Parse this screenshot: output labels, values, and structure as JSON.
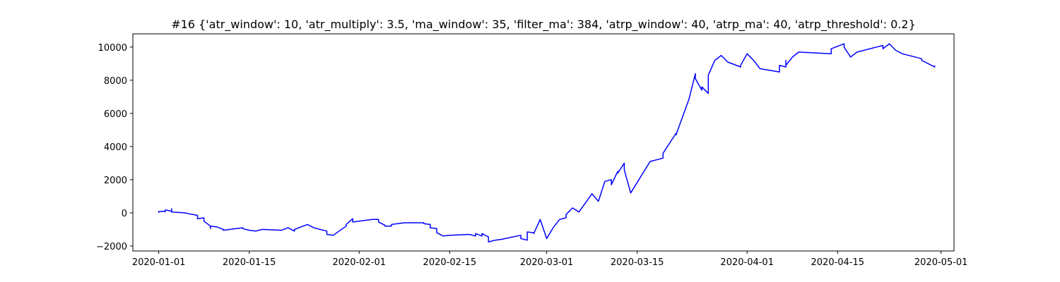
{
  "chart_data": {
    "type": "line",
    "title": "#16 {'atr_window': 10, 'atr_multiply': 3.5, 'ma_window': 35, 'filter_ma': 384, 'atrp_window': 40, 'atrp_ma': 40, 'atrp_threshold': 0.2}",
    "xlabel": "",
    "ylabel": "",
    "grid": false,
    "xlim": [
      "2019-12-28",
      "2020-05-03"
    ],
    "ylim": [
      -2300,
      10800
    ],
    "x_ticks": [
      "2020-01-01",
      "2020-01-15",
      "2020-02-01",
      "2020-02-15",
      "2020-03-01",
      "2020-03-15",
      "2020-04-01",
      "2020-04-15",
      "2020-05-01"
    ],
    "y_ticks": [
      -2000,
      0,
      2000,
      4000,
      6000,
      8000,
      10000
    ],
    "y_tick_labels": [
      "−2000",
      "0",
      "2000",
      "4000",
      "6000",
      "8000",
      "10000"
    ],
    "series": [
      {
        "color": "#0000ff",
        "points": [
          [
            "2020-01-01",
            0
          ],
          [
            "2020-01-01",
            80
          ],
          [
            "2020-01-02",
            100
          ],
          [
            "2020-01-02",
            60
          ],
          [
            "2020-01-02",
            180
          ],
          [
            "2020-01-03",
            100
          ],
          [
            "2020-01-03",
            250
          ],
          [
            "2020-01-03",
            150
          ],
          [
            "2020-01-03",
            50
          ],
          [
            "2020-01-05",
            0
          ],
          [
            "2020-01-06",
            -80
          ],
          [
            "2020-01-07",
            -150
          ],
          [
            "2020-01-07",
            -350
          ],
          [
            "2020-01-08",
            -300
          ],
          [
            "2020-01-08",
            -500
          ],
          [
            "2020-01-09",
            -800
          ],
          [
            "2020-01-09",
            -950
          ],
          [
            "2020-01-09",
            -800
          ],
          [
            "2020-01-10",
            -850
          ],
          [
            "2020-01-11",
            -1000
          ],
          [
            "2020-01-11",
            -1050
          ],
          [
            "2020-01-12",
            -1000
          ],
          [
            "2020-01-14",
            -900
          ],
          [
            "2020-01-14",
            -950
          ],
          [
            "2020-01-15",
            -1050
          ],
          [
            "2020-01-16",
            -1100
          ],
          [
            "2020-01-17",
            -1000
          ],
          [
            "2020-01-20",
            -1050
          ],
          [
            "2020-01-21",
            -900
          ],
          [
            "2020-01-22",
            -1100
          ],
          [
            "2020-01-22",
            -1000
          ],
          [
            "2020-01-24",
            -700
          ],
          [
            "2020-01-25",
            -900
          ],
          [
            "2020-01-27",
            -1100
          ],
          [
            "2020-01-27",
            -1300
          ],
          [
            "2020-01-28",
            -1350
          ],
          [
            "2020-01-30",
            -800
          ],
          [
            "2020-01-30",
            -700
          ],
          [
            "2020-01-31",
            -350
          ],
          [
            "2020-01-31",
            -550
          ],
          [
            "2020-02-03",
            -400
          ],
          [
            "2020-02-04",
            -400
          ],
          [
            "2020-02-04",
            -550
          ],
          [
            "2020-02-05",
            -750
          ],
          [
            "2020-02-05",
            -800
          ],
          [
            "2020-02-06",
            -800
          ],
          [
            "2020-02-06",
            -700
          ],
          [
            "2020-02-08",
            -600
          ],
          [
            "2020-02-11",
            -600
          ],
          [
            "2020-02-11",
            -650
          ],
          [
            "2020-02-12",
            -700
          ],
          [
            "2020-02-12",
            -900
          ],
          [
            "2020-02-13",
            -950
          ],
          [
            "2020-02-13",
            -1200
          ],
          [
            "2020-02-14",
            -1400
          ],
          [
            "2020-02-15",
            -1350
          ],
          [
            "2020-02-18",
            -1300
          ],
          [
            "2020-02-19",
            -1400
          ],
          [
            "2020-02-19",
            -1250
          ],
          [
            "2020-02-20",
            -1400
          ],
          [
            "2020-02-20",
            -1250
          ],
          [
            "2020-02-21",
            -1450
          ],
          [
            "2020-02-21",
            -1750
          ],
          [
            "2020-02-22",
            -1650
          ],
          [
            "2020-02-23",
            -1600
          ],
          [
            "2020-02-26",
            -1350
          ],
          [
            "2020-02-26",
            -1550
          ],
          [
            "2020-02-27",
            -1650
          ],
          [
            "2020-02-27",
            -1150
          ],
          [
            "2020-02-28",
            -1200
          ],
          [
            "2020-02-28",
            -1250
          ],
          [
            "2020-02-29",
            -400
          ],
          [
            "2020-03-01",
            -1550
          ],
          [
            "2020-03-02",
            -900
          ],
          [
            "2020-03-03",
            -400
          ],
          [
            "2020-03-04",
            -300
          ],
          [
            "2020-03-04",
            -100
          ],
          [
            "2020-03-05",
            300
          ],
          [
            "2020-03-06",
            50
          ],
          [
            "2020-03-08",
            1150
          ],
          [
            "2020-03-09",
            700
          ],
          [
            "2020-03-10",
            1900
          ],
          [
            "2020-03-11",
            2000
          ],
          [
            "2020-03-11",
            1700
          ],
          [
            "2020-03-12",
            2500
          ],
          [
            "2020-03-12",
            2400
          ],
          [
            "2020-03-13",
            3000
          ],
          [
            "2020-03-13",
            2600
          ],
          [
            "2020-03-14",
            1200
          ],
          [
            "2020-03-17",
            3100
          ],
          [
            "2020-03-19",
            3300
          ],
          [
            "2020-03-19",
            3600
          ],
          [
            "2020-03-21",
            4800
          ],
          [
            "2020-03-21",
            4700
          ],
          [
            "2020-03-23",
            6850
          ],
          [
            "2020-03-24",
            8400
          ],
          [
            "2020-03-24",
            8100
          ],
          [
            "2020-03-25",
            7400
          ],
          [
            "2020-03-25",
            7600
          ],
          [
            "2020-03-26",
            7200
          ],
          [
            "2020-03-26",
            7400
          ],
          [
            "2020-03-26",
            8300
          ],
          [
            "2020-03-27",
            9200
          ],
          [
            "2020-03-28",
            9500
          ],
          [
            "2020-03-29",
            9100
          ],
          [
            "2020-03-31",
            8800
          ],
          [
            "2020-03-31",
            8900
          ],
          [
            "2020-04-01",
            9600
          ],
          [
            "2020-04-02",
            9200
          ],
          [
            "2020-04-03",
            8700
          ],
          [
            "2020-04-06",
            8500
          ],
          [
            "2020-04-06",
            8900
          ],
          [
            "2020-04-07",
            8800
          ],
          [
            "2020-04-07",
            9200
          ],
          [
            "2020-04-07",
            8900
          ],
          [
            "2020-04-08",
            9400
          ],
          [
            "2020-04-09",
            9700
          ],
          [
            "2020-04-14",
            9600
          ],
          [
            "2020-04-14",
            9900
          ],
          [
            "2020-04-16",
            10200
          ],
          [
            "2020-04-16",
            10000
          ],
          [
            "2020-04-17",
            9400
          ],
          [
            "2020-04-18",
            9700
          ],
          [
            "2020-04-21",
            10000
          ],
          [
            "2020-04-22",
            10100
          ],
          [
            "2020-04-22",
            9900
          ],
          [
            "2020-04-23",
            10200
          ],
          [
            "2020-04-24",
            9800
          ],
          [
            "2020-04-25",
            9600
          ],
          [
            "2020-04-28",
            9300
          ],
          [
            "2020-04-28",
            9200
          ],
          [
            "2020-04-30",
            8800
          ],
          [
            "2020-04-30",
            8900
          ]
        ]
      }
    ]
  }
}
